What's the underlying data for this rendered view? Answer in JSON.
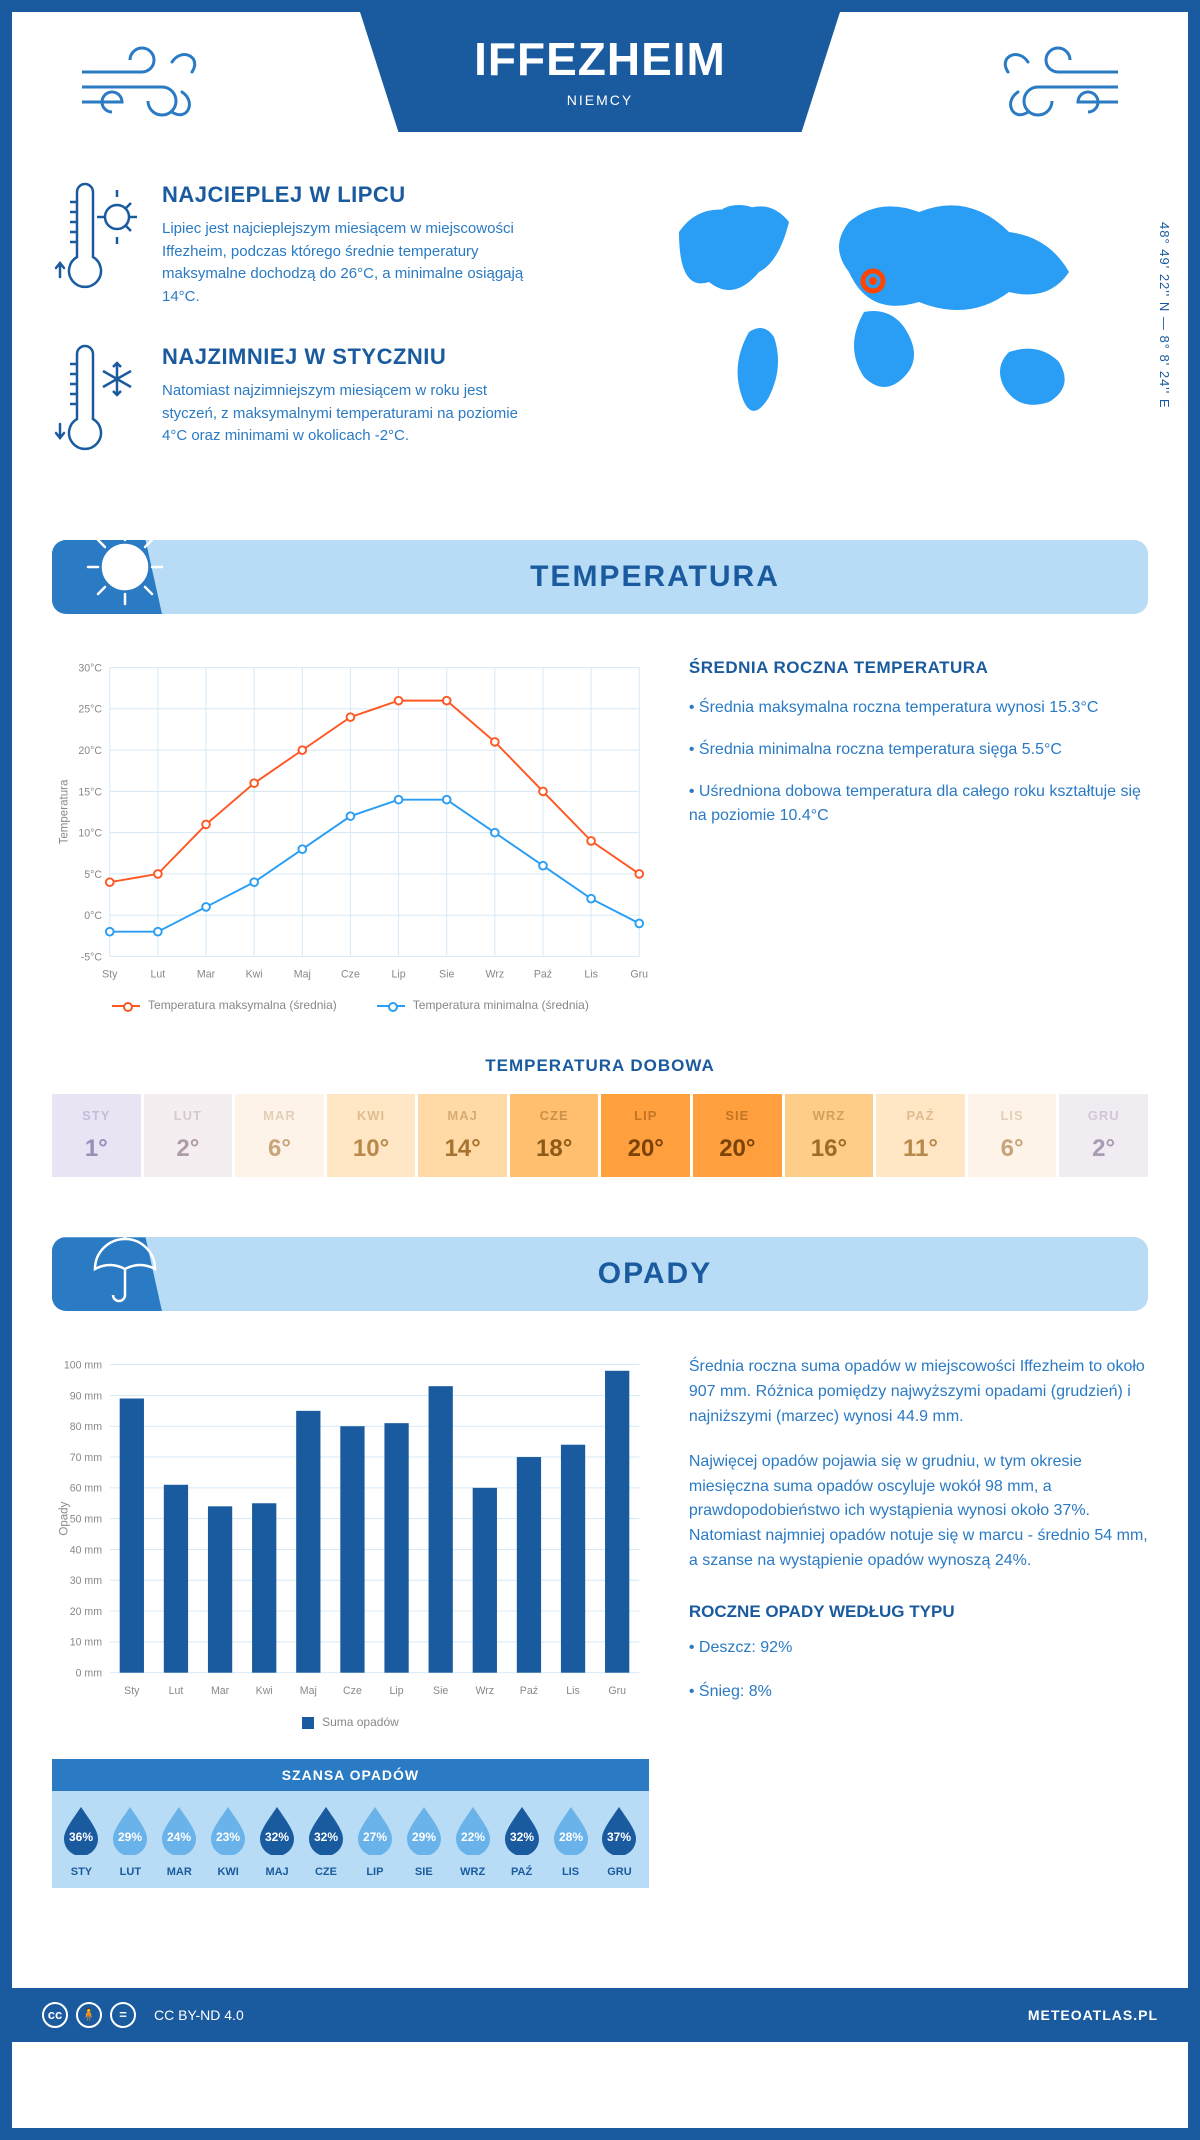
{
  "header": {
    "title": "IFFEZHEIM",
    "country": "NIEMCY"
  },
  "coords": "48° 49' 22'' N — 8° 8' 24'' E",
  "facts": {
    "hot": {
      "title": "NAJCIEPLEJ W LIPCU",
      "text": "Lipiec jest najcieplejszym miesiącem w miejscowości Iffezheim, podczas którego średnie temperatury maksymalne dochodzą do 26°C, a minimalne osiągają 14°C."
    },
    "cold": {
      "title": "NAJZIMNIEJ W STYCZNIU",
      "text": "Natomiast najzimniejszym miesiącem w roku jest styczeń, z maksymalnymi temperaturami na poziomie 4°C oraz minimami w okolicach -2°C."
    }
  },
  "sections": {
    "temperature": "TEMPERATURA",
    "precip": "OPADY"
  },
  "temp_chart": {
    "type": "line",
    "months": [
      "Sty",
      "Lut",
      "Mar",
      "Kwi",
      "Maj",
      "Cze",
      "Lip",
      "Sie",
      "Wrz",
      "Paź",
      "Lis",
      "Gru"
    ],
    "max": [
      4,
      5,
      11,
      16,
      20,
      24,
      26,
      26,
      21,
      15,
      9,
      5
    ],
    "min": [
      -2,
      -2,
      1,
      4,
      8,
      12,
      14,
      14,
      10,
      6,
      2,
      -1
    ],
    "ylim": [
      -5,
      30
    ],
    "ytick_step": 5,
    "max_color": "#ff5722",
    "min_color": "#2a9df4",
    "grid_color": "#d4e8f7",
    "y_axis_title": "Temperatura",
    "legend_max": "Temperatura maksymalna (średnia)",
    "legend_min": "Temperatura minimalna (średnia)"
  },
  "temp_stats": {
    "title": "ŚREDNIA ROCZNA TEMPERATURA",
    "b1": "• Średnia maksymalna roczna temperatura wynosi 15.3°C",
    "b2": "• Średnia minimalna roczna temperatura sięga 5.5°C",
    "b3": "• Uśredniona dobowa temperatura dla całego roku kształtuje się na poziomie 10.4°C"
  },
  "daily": {
    "title": "TEMPERATURA DOBOWA",
    "months": [
      "STY",
      "LUT",
      "MAR",
      "KWI",
      "MAJ",
      "CZE",
      "LIP",
      "SIE",
      "WRZ",
      "PAŹ",
      "LIS",
      "GRU"
    ],
    "values": [
      "1°",
      "2°",
      "6°",
      "10°",
      "14°",
      "18°",
      "20°",
      "20°",
      "16°",
      "11°",
      "6°",
      "2°"
    ],
    "bg": [
      "#e8e4f4",
      "#f4eef0",
      "#fdf3e8",
      "#ffe7c6",
      "#ffd9a6",
      "#ffbf6e",
      "#ff9f3d",
      "#ff9f3d",
      "#ffcd8a",
      "#ffe7c6",
      "#fdf3e8",
      "#f0ecf2"
    ],
    "fg": [
      "#9a8db8",
      "#b09ca8",
      "#c7a47a",
      "#b8894a",
      "#a6742e",
      "#8d5a18",
      "#7a4408",
      "#7a4408",
      "#9c6d26",
      "#b8894a",
      "#c7a47a",
      "#a89cb4"
    ]
  },
  "precip_chart": {
    "type": "bar",
    "months": [
      "Sty",
      "Lut",
      "Mar",
      "Kwi",
      "Maj",
      "Cze",
      "Lip",
      "Sie",
      "Wrz",
      "Paź",
      "Lis",
      "Gru"
    ],
    "values": [
      89,
      61,
      54,
      55,
      85,
      80,
      81,
      93,
      60,
      70,
      74,
      98
    ],
    "ylim": [
      0,
      100
    ],
    "ytick_step": 10,
    "bar_color": "#1a5a9e",
    "grid_color": "#d4e8f7",
    "y_axis_title": "Opady",
    "legend": "Suma opadów"
  },
  "precip_text": {
    "p1": "Średnia roczna suma opadów w miejscowości Iffezheim to około 907 mm. Różnica pomiędzy najwyższymi opadami (grudzień) i najniższymi (marzec) wynosi 44.9 mm.",
    "p2": "Najwięcej opadów pojawia się w grudniu, w tym okresie miesięczna suma opadów oscyluje wokół 98 mm, a prawdopodobieństwo ich wystąpienia wynosi około 37%. Natomiast najmniej opadów notuje się w marcu - średnio 54 mm, a szanse na wystąpienie opadów wynoszą 24%.",
    "type_title": "ROCZNE OPADY WEDŁUG TYPU",
    "rain": "• Deszcz: 92%",
    "snow": "• Śnieg: 8%"
  },
  "chance": {
    "title": "SZANSA OPADÓW",
    "months": [
      "STY",
      "LUT",
      "MAR",
      "KWI",
      "MAJ",
      "CZE",
      "LIP",
      "SIE",
      "WRZ",
      "PAŹ",
      "LIS",
      "GRU"
    ],
    "values": [
      "36%",
      "29%",
      "24%",
      "23%",
      "32%",
      "32%",
      "27%",
      "29%",
      "22%",
      "32%",
      "28%",
      "37%"
    ],
    "dark": [
      true,
      false,
      false,
      false,
      true,
      true,
      false,
      false,
      false,
      true,
      false,
      true
    ]
  },
  "footer": {
    "license": "CC BY-ND 4.0",
    "site": "METEOATLAS.PL"
  }
}
